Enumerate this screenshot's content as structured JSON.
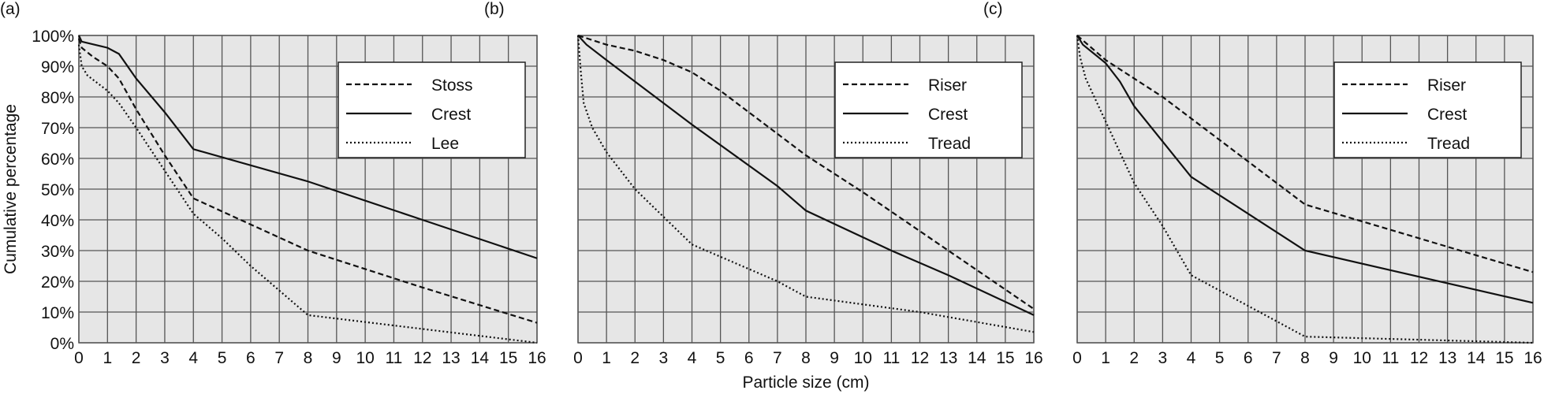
{
  "chart_data": {
    "type": "line",
    "ylabel": "Cumulative percentage",
    "xlabel": "Particle size (cm)",
    "xlim": [
      0,
      16
    ],
    "ylim": [
      0,
      100
    ],
    "x_ticks": [
      "0",
      "1",
      "2",
      "3",
      "4",
      "5",
      "6",
      "7",
      "8",
      "9",
      "10",
      "11",
      "12",
      "13",
      "14",
      "15",
      "16"
    ],
    "y_ticks": [
      "0%",
      "10%",
      "20%",
      "30%",
      "40%",
      "50%",
      "60%",
      "70%",
      "80%",
      "90%",
      "100%"
    ],
    "grid": true,
    "legend_position": "top-right",
    "colors": {
      "background": "#e6e6e6",
      "grid": "#555555",
      "line": "#111111"
    },
    "panels": [
      {
        "label": "(a)",
        "series": [
          {
            "name": "Stoss",
            "style": "dashed",
            "x": [
              0,
              0.1,
              0.5,
              1,
              1.4,
              2,
              3,
              4,
              8,
              12,
              16
            ],
            "y": [
              99,
              96,
              93,
              90,
              86,
              76,
              61,
              47,
              30,
              18,
              6.5
            ]
          },
          {
            "name": "Crest",
            "style": "solid",
            "x": [
              0,
              0.1,
              1,
              1.4,
              2,
              3,
              4,
              8,
              12,
              16
            ],
            "y": [
              100,
              98,
              96,
              94,
              86,
              75,
              63,
              52.5,
              40,
              27.5
            ]
          },
          {
            "name": "Lee",
            "style": "dotted",
            "x": [
              0,
              0.1,
              0.3,
              1,
              1.4,
              2,
              3,
              4,
              5,
              6,
              7,
              8,
              12,
              16
            ],
            "y": [
              97,
              90,
              87,
              82,
              78,
              70,
              56,
              42,
              34,
              25,
              17,
              9,
              4.5,
              0
            ]
          }
        ]
      },
      {
        "label": "(b)",
        "series": [
          {
            "name": "Riser",
            "style": "dashed",
            "x": [
              0,
              1,
              2,
              3,
              4,
              5,
              8,
              10,
              13,
              16
            ],
            "y": [
              100,
              97,
              95,
              92,
              88,
              82,
              61,
              49,
              30,
              11
            ]
          },
          {
            "name": "Crest",
            "style": "solid",
            "x": [
              0,
              0.3,
              1,
              4,
              7,
              8,
              11,
              13,
              16
            ],
            "y": [
              100,
              97,
              92,
              71,
              51,
              43,
              30,
              22,
              9
            ]
          },
          {
            "name": "Tread",
            "style": "dotted",
            "x": [
              0,
              0.1,
              0.2,
              0.5,
              1,
              2,
              3,
              4,
              7,
              8,
              12,
              16
            ],
            "y": [
              100,
              88,
              78,
              70,
              62,
              50,
              41,
              32,
              20,
              15,
              10,
              3.5
            ]
          }
        ]
      },
      {
        "label": "(c)",
        "series": [
          {
            "name": "Riser",
            "style": "dashed",
            "x": [
              0,
              1,
              2,
              3,
              4,
              8,
              16
            ],
            "y": [
              100,
              92,
              86,
              80,
              73,
              45,
              23
            ]
          },
          {
            "name": "Crest",
            "style": "solid",
            "x": [
              0,
              0.2,
              0.6,
              1,
              1.5,
              2,
              4,
              8,
              16
            ],
            "y": [
              100,
              97,
              94,
              91,
              85,
              77,
              54,
              30,
              13
            ]
          },
          {
            "name": "Tread",
            "style": "dotted",
            "x": [
              0,
              0.1,
              0.3,
              0.6,
              1,
              2,
              3,
              4,
              8,
              16
            ],
            "y": [
              100,
              93,
              86,
              80,
              72,
              52,
              38,
              22,
              2,
              0
            ]
          }
        ]
      }
    ]
  }
}
